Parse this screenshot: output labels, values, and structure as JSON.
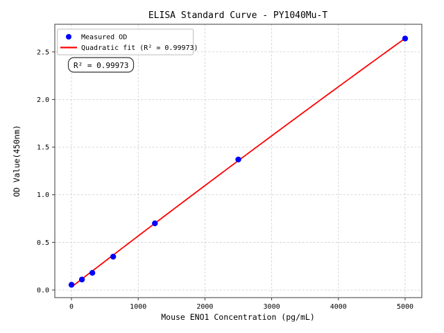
{
  "chart_data": {
    "type": "scatter",
    "title": "ELISA Standard Curve - PY1040Mu-T",
    "xlabel": "Mouse ENO1 Concentration (pg/mL)",
    "ylabel": "OD Value(450nm)",
    "xlim": [
      -250,
      5250
    ],
    "ylim": [
      -0.08,
      2.79
    ],
    "xticks": [
      0,
      1000,
      2000,
      3000,
      4000,
      5000
    ],
    "xtick_labels": [
      "0",
      "1000",
      "2000",
      "3000",
      "4000",
      "5000"
    ],
    "yticks": [
      0.0,
      0.5,
      1.0,
      1.5,
      2.0,
      2.5
    ],
    "ytick_labels": [
      "0.0",
      "0.5",
      "1.0",
      "1.5",
      "2.0",
      "2.5"
    ],
    "grid": true,
    "grid_color": "#d2d2d2",
    "grid_style": "dashed",
    "legend_position": "upper-left",
    "series": [
      {
        "name": "Measured OD",
        "type": "scatter",
        "color": "#0000ff",
        "x": [
          0,
          156.25,
          312.5,
          625,
          1250,
          2500,
          5000
        ],
        "y": [
          0.055,
          0.11,
          0.18,
          0.35,
          0.7,
          1.37,
          2.64
        ]
      },
      {
        "name": "Quadratic fit (R² = 0.99973)",
        "type": "line",
        "color": "#ff0000",
        "fit": {
          "kind": "quadratic",
          "a": 0.0315,
          "b": 0.0005391,
          "c": -3.379e-09,
          "x_range": [
            0,
            5000
          ]
        }
      }
    ],
    "annotation": {
      "text": "R² = 0.99973"
    },
    "r_squared": 0.99973
  }
}
